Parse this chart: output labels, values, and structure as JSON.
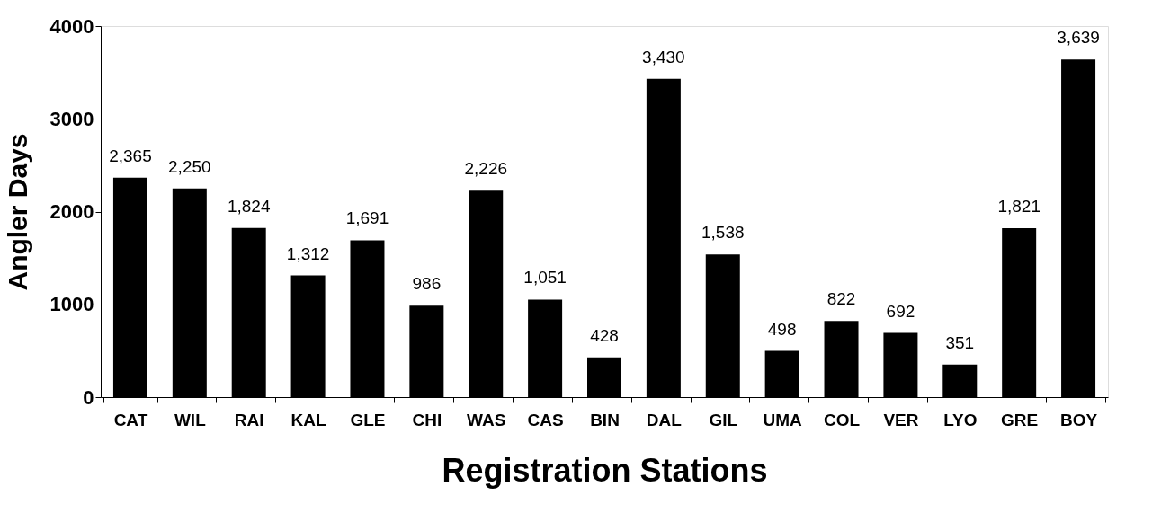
{
  "chart_data": {
    "type": "bar",
    "xlabel": "Registration Stations",
    "ylabel": "Angler Days",
    "categories": [
      "CAT",
      "WIL",
      "RAI",
      "KAL",
      "GLE",
      "CHI",
      "WAS",
      "CAS",
      "BIN",
      "DAL",
      "GIL",
      "UMA",
      "COL",
      "VER",
      "LYO",
      "GRE",
      "BOY"
    ],
    "values": [
      2365,
      2250,
      1824,
      1312,
      1691,
      986,
      2226,
      1051,
      428,
      3430,
      1538,
      498,
      822,
      692,
      351,
      1821,
      3639
    ],
    "value_labels": [
      "2,365",
      "2,250",
      "1,824",
      "1,312",
      "1,691",
      "986",
      "2,226",
      "1,051",
      "428",
      "3,430",
      "1,538",
      "498",
      "822",
      "692",
      "351",
      "1,821",
      "3,639"
    ],
    "color": "#000000",
    "ylim": [
      0,
      4000
    ],
    "yticks": [
      0,
      1000,
      2000,
      3000,
      4000
    ],
    "grid": false
  }
}
